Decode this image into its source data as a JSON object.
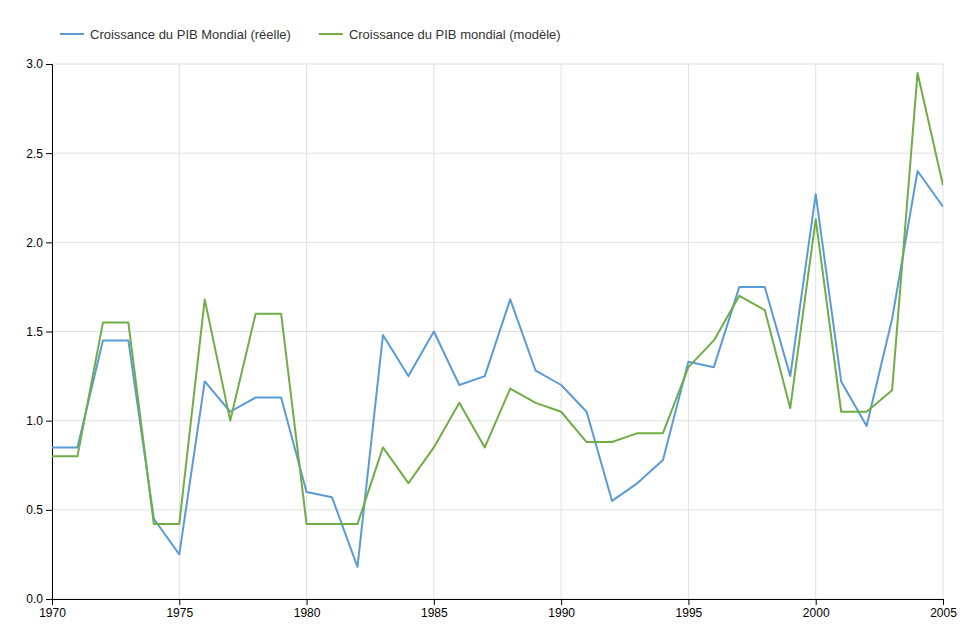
{
  "chart_data": {
    "type": "line",
    "x": [
      1970,
      1971,
      1972,
      1973,
      1974,
      1975,
      1976,
      1977,
      1978,
      1979,
      1980,
      1981,
      1982,
      1983,
      1984,
      1985,
      1986,
      1987,
      1988,
      1989,
      1990,
      1991,
      1992,
      1993,
      1994,
      1995,
      1996,
      1997,
      1998,
      1999,
      2000,
      2001,
      2002,
      2003,
      2004,
      2005
    ],
    "series": [
      {
        "name": "Croissance du PIB Mondial (réelle)",
        "color": "#5B9BD5",
        "values": [
          0.85,
          0.85,
          1.45,
          1.45,
          0.45,
          0.25,
          1.22,
          1.05,
          1.13,
          1.13,
          0.6,
          0.57,
          0.18,
          1.48,
          1.25,
          1.5,
          1.2,
          1.25,
          1.68,
          1.28,
          1.2,
          1.05,
          0.55,
          0.65,
          0.78,
          1.33,
          1.3,
          1.75,
          1.75,
          1.25,
          2.27,
          1.22,
          0.97,
          1.57,
          2.4,
          2.2
        ]
      },
      {
        "name": "Croissance du PIB mondial (modèle)",
        "color": "#70AD47",
        "values": [
          0.8,
          0.8,
          1.55,
          1.55,
          0.42,
          0.42,
          1.68,
          1.0,
          1.6,
          1.6,
          0.42,
          0.42,
          0.42,
          0.85,
          0.65,
          0.85,
          1.1,
          0.85,
          1.18,
          1.1,
          1.05,
          0.88,
          0.88,
          0.93,
          0.93,
          1.3,
          1.45,
          1.7,
          1.62,
          1.07,
          2.13,
          1.05,
          1.05,
          1.17,
          2.95,
          2.32
        ]
      }
    ],
    "xlim": [
      1970,
      2005
    ],
    "xticks": [
      1970,
      1975,
      1980,
      1985,
      1990,
      1995,
      2000,
      2005
    ],
    "ylim": [
      0.0,
      3.0
    ],
    "yticks": [
      {
        "value": 0.0,
        "label": "0.0"
      },
      0.5,
      {
        "value": 1.0,
        "label": "1.0"
      },
      1.5,
      {
        "value": 2.0,
        "label": "2.0"
      },
      2.5,
      {
        "value": 3.0,
        "label": "3.0"
      }
    ],
    "grid": true,
    "legend": "upper-left"
  }
}
